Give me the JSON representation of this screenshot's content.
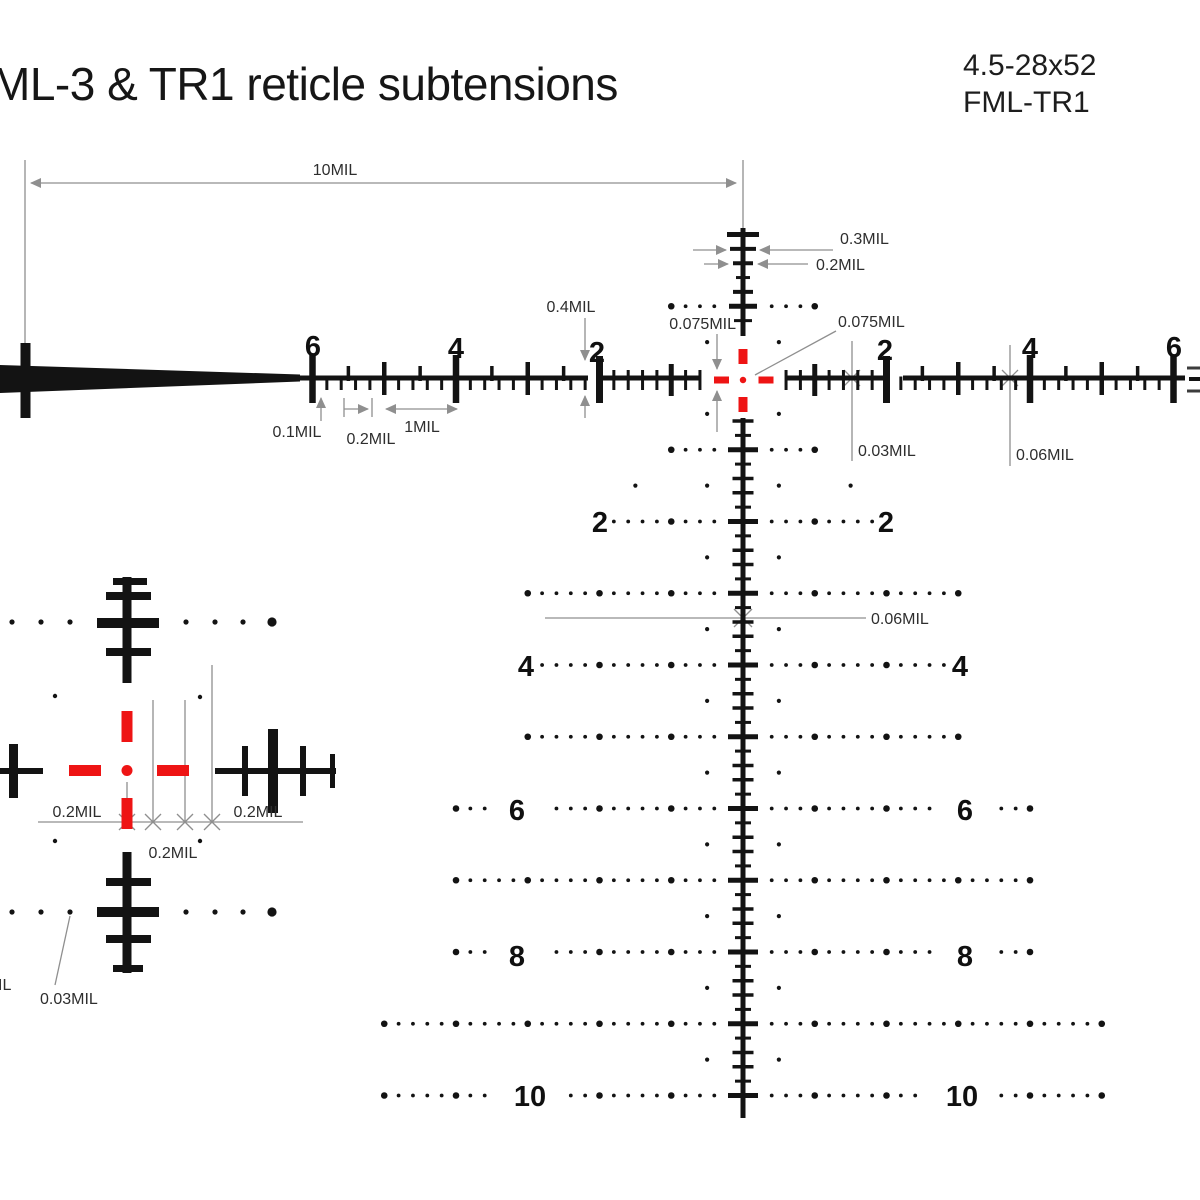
{
  "title": "ML-3 & TR1 reticle subtensions",
  "model": {
    "magnification": "4.5-28x52",
    "name": "FML-TR1"
  },
  "colors": {
    "reticle": "#131313",
    "accent_red": "#ee1414",
    "dimension_gray": "#8f8f8f",
    "label_text": "#2e2e2e"
  },
  "scales": {
    "h_left": [
      "6",
      "4",
      "2"
    ],
    "h_right": [
      "2",
      "4",
      "6"
    ],
    "v_left": [
      "2",
      "4",
      "6",
      "8",
      "10"
    ],
    "v_right": [
      "2",
      "4",
      "6",
      "8",
      "10"
    ]
  },
  "dimensions": {
    "span": "10MIL",
    "top_tick_wide": "0.3MIL",
    "top_tick_narrow": "0.2MIL",
    "center_gap_left": "0.075MIL",
    "center_gap_right": "0.075MIL",
    "two_mil_gap": "0.4MIL",
    "edge_tick": "0.1MIL",
    "minor_step": "0.2MIL",
    "one_mil": "1MIL",
    "fine_tick": "0.03MIL",
    "half_tick": "0.06MIL",
    "axis_tick": "0.06MIL"
  },
  "inset": {
    "left_step": "0.2MIL",
    "right_step": "0.2MIL",
    "bottom_step": "0.2MIL",
    "dot_size": "0.03MIL",
    "clipped_label": "IL"
  }
}
